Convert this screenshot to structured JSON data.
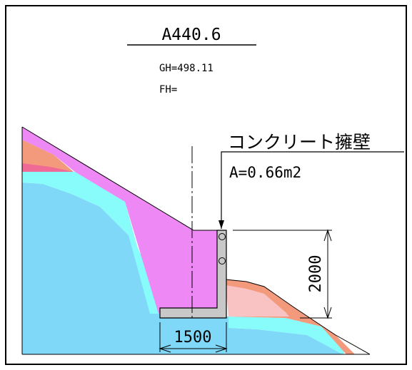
{
  "drawing": {
    "station": "A440.6",
    "ground_height": "GH=498.11",
    "formation_height": "FH=",
    "structure_label": "コンクリート擁壁",
    "area_label": "A=0.66m2",
    "dim_width": "1500",
    "dim_height": "2000"
  },
  "colors": {
    "frame": "#000000",
    "magenta_layer": "#ee88f4",
    "salmon_layer": "#f39a7c",
    "cyan_layer": "#88fbfb",
    "blue_layer": "#7fd8f7",
    "pink_layer": "#f9c3c3",
    "wall": "#c8c8c8"
  }
}
